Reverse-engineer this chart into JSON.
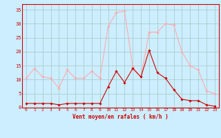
{
  "x": [
    0,
    1,
    2,
    3,
    4,
    5,
    6,
    7,
    8,
    9,
    10,
    11,
    12,
    13,
    14,
    15,
    16,
    17,
    18,
    19,
    20,
    21,
    22,
    23
  ],
  "rafales": [
    10.5,
    14,
    11,
    10.5,
    7,
    13.5,
    10.5,
    10.5,
    13,
    10.5,
    29,
    34,
    34.5,
    14.5,
    11,
    27,
    27,
    30,
    29.5,
    20,
    15,
    13.5,
    6,
    5
  ],
  "moyen": [
    1.5,
    1.5,
    1.5,
    1.5,
    1.0,
    1.5,
    1.5,
    1.5,
    1.5,
    1.5,
    7.5,
    13,
    9,
    14,
    11,
    20.5,
    12.5,
    10.5,
    6.5,
    3,
    2.5,
    2.5,
    1,
    0.5
  ],
  "bg_color": "#cceeff",
  "grid_color": "#aacccc",
  "line_color_rafales": "#ffaaaa",
  "line_color_moyen": "#cc0000",
  "xlabel": "Vent moyen/en rafales ( km/h )",
  "ylim": [
    0,
    37
  ],
  "yticks": [
    0,
    5,
    10,
    15,
    20,
    25,
    30,
    35
  ],
  "xlim": [
    -0.5,
    23.5
  ],
  "xticks": [
    0,
    1,
    2,
    3,
    4,
    5,
    6,
    7,
    8,
    9,
    10,
    11,
    12,
    13,
    14,
    15,
    16,
    17,
    18,
    19,
    20,
    21,
    22,
    23
  ]
}
